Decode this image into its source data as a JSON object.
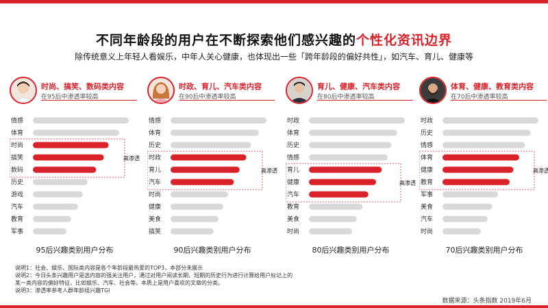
{
  "title": {
    "main": "不同年龄段的用户在不断探索他们感兴趣的",
    "highlight": "个性化资讯边界"
  },
  "subtitle": "除传统意义上年轻人看娱乐，中年人关心健康，也体现出一些「跨年龄段的偏好共性」，如汽车、育儿、健康等",
  "colors": {
    "accent": "#d9222a",
    "bar_gray": "#d9d9d9"
  },
  "chart_data": [
    {
      "type": "bar",
      "orientation": "horizontal",
      "avatar_icon": "young-man-avatar-icon",
      "headline": "时尚、搞笑、数码类内容",
      "desc": "在95后中渗透率较高",
      "caption": "95后兴趣类别用户分布",
      "callout": "高渗透率",
      "categories": [
        "情感",
        "体育",
        "时尚",
        "搞笑",
        "数码",
        "历史",
        "游戏",
        "汽车",
        "教育",
        "军事"
      ],
      "values": [
        100,
        90,
        79,
        74,
        66,
        57,
        52,
        47,
        40,
        35
      ],
      "highlighted": [
        2,
        3,
        4
      ]
    },
    {
      "type": "bar",
      "orientation": "horizontal",
      "avatar_icon": "young-woman-avatar-icon",
      "headline": "时政、育儿、汽车类内容",
      "desc": "在90后中渗透率较高",
      "caption": "90后兴趣类别用户分布",
      "callout": "高渗透率",
      "categories": [
        "情感",
        "体育",
        "历史",
        "时政",
        "育儿",
        "汽车",
        "时尚",
        "健康",
        "美食",
        "搞笑"
      ],
      "values": [
        100,
        92,
        84,
        79,
        72,
        66,
        60,
        55,
        50,
        45
      ],
      "highlighted": [
        3,
        4,
        5
      ]
    },
    {
      "type": "bar",
      "orientation": "horizontal",
      "avatar_icon": "man-avatar-icon",
      "headline": "育儿、健康、汽车类内容",
      "desc": "在80后中渗透率较高",
      "caption": "80后兴趣类别用户分布",
      "callout": "高渗透率",
      "categories": [
        "时政",
        "体育",
        "历史",
        "情感",
        "育儿",
        "健康",
        "汽车",
        "教育",
        "美食",
        "时尚"
      ],
      "values": [
        100,
        92,
        86,
        82,
        76,
        70,
        62,
        56,
        50,
        45
      ],
      "highlighted": [
        4,
        5,
        6
      ]
    },
    {
      "type": "bar",
      "orientation": "horizontal",
      "avatar_icon": "bearded-man-avatar-icon",
      "headline": "体育、健康、教育类内容",
      "desc": "在70后中渗透率较高",
      "caption": "70后兴趣类别用户分布",
      "callout": "高渗透率",
      "categories": [
        "时政",
        "历史",
        "情感",
        "体育",
        "健康",
        "教育",
        "军事",
        "美食",
        "汽车",
        "时尚"
      ],
      "values": [
        100,
        92,
        86,
        80,
        74,
        70,
        58,
        52,
        47,
        40
      ],
      "highlighted": [
        3,
        4,
        5
      ]
    }
  ],
  "notes": [
    "说明1：社会、娱乐、国际类内容是各个年龄段最热爱的TOP3，本部分未展示",
    "说明2：今日头条兴趣用户是选内容的强关注用户，通过对用户阅读长期、短期的历史行为进行计算给用户标记上的",
    "某一类内容的偏好特征，比如娱乐、汽车、社会等。本质上是用户喜欢的文章的分类。",
    "说明3：渗透率参考人群年龄组兴趣TGI"
  ],
  "source": "数据来源：头条指数  2019年6月"
}
